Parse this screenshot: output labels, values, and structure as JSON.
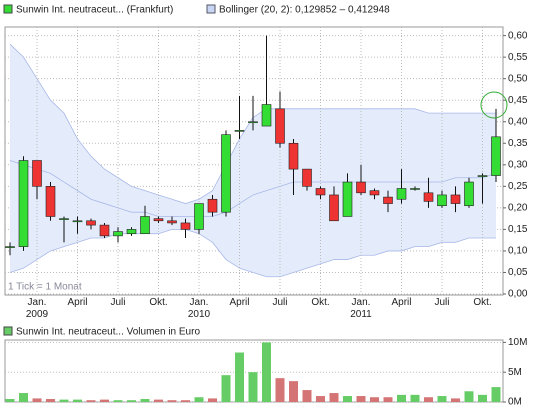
{
  "chart_data": [
    {
      "type": "candlestick",
      "legend": "Sunwin Int. neutraceut... (Frankfurt)",
      "band_legend": "Bollinger (20, 2): 0,129852 – 0,412948",
      "note": "1 Tick = 1 Monat",
      "up_color": "#33dd33",
      "down_color": "#ee3333",
      "band_color": "#e4ecfb",
      "band_line_color": "#a8b8e8",
      "categories": [
        null,
        null,
        "Jan.\n2009",
        null,
        null,
        "April",
        null,
        null,
        "Juli",
        null,
        null,
        "Okt.",
        null,
        null,
        "Jan.\n2010",
        null,
        null,
        "April",
        null,
        null,
        "Juli",
        null,
        null,
        "Okt.",
        null,
        null,
        "Jan.\n2011",
        null,
        null,
        "April",
        null,
        null,
        "Juli",
        null,
        null,
        "Okt.",
        null
      ],
      "open": [
        0.11,
        0.11,
        0.31,
        0.25,
        0.175,
        0.17,
        0.17,
        0.16,
        0.135,
        0.14,
        0.14,
        0.175,
        0.17,
        0.165,
        0.15,
        0.22,
        0.19,
        0.38,
        0.4,
        0.39,
        0.43,
        0.35,
        0.29,
        0.245,
        0.23,
        0.18,
        0.26,
        0.24,
        0.225,
        0.22,
        0.245,
        0.235,
        0.205,
        0.23,
        0.205,
        0.275,
        0.275
      ],
      "high": [
        0.12,
        0.32,
        0.31,
        0.26,
        0.18,
        0.18,
        0.175,
        0.165,
        0.155,
        0.155,
        0.205,
        0.18,
        0.18,
        0.175,
        0.21,
        0.23,
        0.38,
        0.46,
        0.46,
        0.6,
        0.47,
        0.36,
        0.29,
        0.25,
        0.25,
        0.28,
        0.3,
        0.245,
        0.24,
        0.29,
        0.25,
        0.27,
        0.24,
        0.25,
        0.27,
        0.28,
        0.43
      ],
      "low": [
        0.09,
        0.1,
        0.22,
        0.17,
        0.12,
        0.14,
        0.15,
        0.13,
        0.12,
        0.135,
        0.14,
        0.165,
        0.16,
        0.13,
        0.14,
        0.18,
        0.18,
        0.36,
        0.38,
        0.39,
        0.34,
        0.23,
        0.24,
        0.22,
        0.17,
        0.18,
        0.23,
        0.22,
        0.19,
        0.21,
        0.24,
        0.2,
        0.2,
        0.19,
        0.2,
        0.21,
        0.26
      ],
      "close": [
        0.11,
        0.31,
        0.25,
        0.18,
        0.175,
        0.17,
        0.16,
        0.135,
        0.145,
        0.15,
        0.18,
        0.17,
        0.165,
        0.15,
        0.21,
        0.19,
        0.37,
        0.38,
        0.4,
        0.44,
        0.35,
        0.29,
        0.25,
        0.23,
        0.17,
        0.26,
        0.235,
        0.23,
        0.21,
        0.245,
        0.245,
        0.215,
        0.23,
        0.21,
        0.26,
        0.275,
        0.365
      ],
      "bollinger": {
        "upper": [
          0.58,
          0.55,
          0.5,
          0.45,
          0.42,
          0.36,
          0.32,
          0.29,
          0.27,
          0.25,
          0.24,
          0.23,
          0.22,
          0.21,
          0.22,
          0.24,
          0.3,
          0.36,
          0.41,
          0.43,
          0.43,
          0.43,
          0.43,
          0.43,
          0.43,
          0.43,
          0.43,
          0.43,
          0.43,
          0.43,
          0.43,
          0.42,
          0.42,
          0.42,
          0.42,
          0.42,
          0.42
        ],
        "middle": [
          0.31,
          0.3,
          0.29,
          0.28,
          0.26,
          0.24,
          0.22,
          0.21,
          0.2,
          0.19,
          0.19,
          0.18,
          0.18,
          0.18,
          0.18,
          0.18,
          0.19,
          0.21,
          0.23,
          0.24,
          0.25,
          0.26,
          0.26,
          0.26,
          0.26,
          0.26,
          0.26,
          0.26,
          0.26,
          0.26,
          0.26,
          0.26,
          0.26,
          0.27,
          0.27,
          0.27,
          0.28
        ],
        "lower": [
          0.05,
          0.06,
          0.08,
          0.1,
          0.11,
          0.12,
          0.13,
          0.13,
          0.14,
          0.14,
          0.14,
          0.14,
          0.15,
          0.15,
          0.14,
          0.12,
          0.08,
          0.06,
          0.05,
          0.04,
          0.04,
          0.05,
          0.06,
          0.07,
          0.08,
          0.08,
          0.09,
          0.09,
          0.1,
          0.1,
          0.11,
          0.11,
          0.12,
          0.12,
          0.13,
          0.13,
          0.13
        ]
      },
      "ylim": [
        0,
        0.62
      ],
      "yticks": [
        {
          "value": 0,
          "label": "0,00"
        },
        {
          "value": 0.05,
          "label": "0,05"
        },
        {
          "value": 0.1,
          "label": "0,10"
        },
        {
          "value": 0.15,
          "label": "0,15"
        },
        {
          "value": 0.2,
          "label": "0,20"
        },
        {
          "value": 0.25,
          "label": "0,25"
        },
        {
          "value": 0.3,
          "label": "0,30"
        },
        {
          "value": 0.35,
          "label": "0,35"
        },
        {
          "value": 0.4,
          "label": "0,40"
        },
        {
          "value": 0.45,
          "label": "0,45"
        },
        {
          "value": 0.5,
          "label": "0,50"
        },
        {
          "value": 0.55,
          "label": "0,55"
        },
        {
          "value": 0.6,
          "label": "0,60"
        }
      ],
      "grid": true
    },
    {
      "type": "bar",
      "legend": "Sunwin Int. neutraceut... Volumen in Euro",
      "up_color": "#66cc66",
      "down_color": "#d47474",
      "values": [
        500000,
        1500000,
        600000,
        500000,
        400000,
        400000,
        300000,
        400000,
        300000,
        300000,
        500000,
        400000,
        300000,
        300000,
        800000,
        600000,
        4500000,
        8300000,
        5000000,
        10000000,
        4000000,
        3500000,
        2000000,
        1000000,
        1500000,
        1000000,
        1000000,
        800000,
        800000,
        1200000,
        1200000,
        800000,
        1000000,
        600000,
        1800000,
        1200000,
        2500000
      ],
      "ylim": [
        0,
        10400000
      ],
      "yticks": [
        {
          "value": 0,
          "label": "0M"
        },
        {
          "value": 5000000,
          "label": "5M"
        },
        {
          "value": 10000000,
          "label": "10M"
        }
      ],
      "grid": true
    }
  ]
}
